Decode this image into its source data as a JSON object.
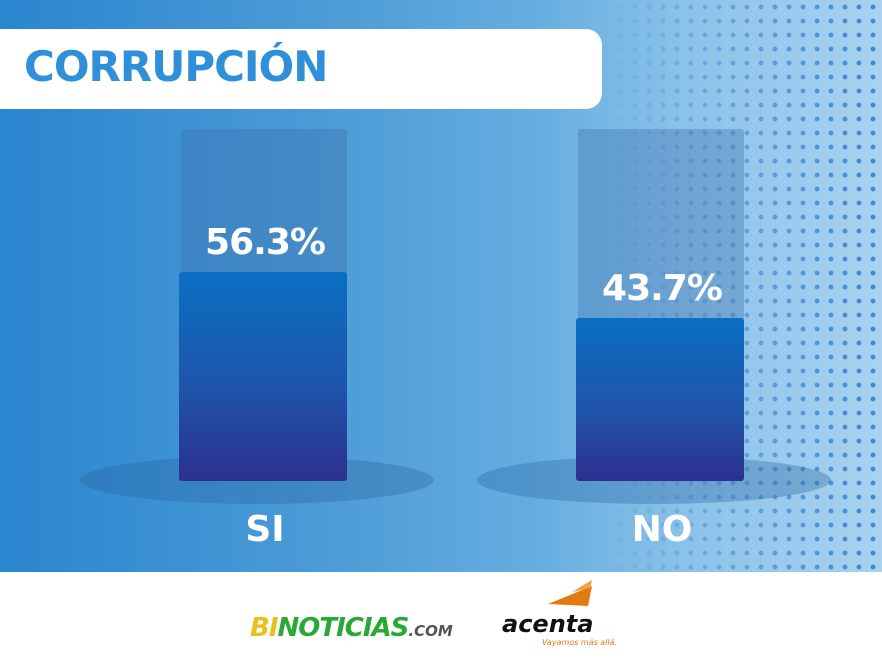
{
  "title": "CORRUPCIÓN",
  "chart_data": {
    "type": "bar",
    "title": "CORRUPCIÓN",
    "categories": [
      "SI",
      "NO"
    ],
    "values": [
      56.3,
      43.7
    ],
    "value_labels": [
      "56.3%",
      "43.7%"
    ],
    "ylim": [
      0,
      100
    ],
    "bar_color": "#1e55ab",
    "grid": false
  },
  "footer": {
    "logo1": {
      "bi": "BI",
      "noticias": "NOTICIAS",
      "com": ".COM"
    },
    "logo2": {
      "word": "acenta",
      "tagline": "Vayamos más allá."
    }
  },
  "colors": {
    "title": "#2f8fd8",
    "accent_orange": "#e07a12",
    "logo_yellow": "#e8c21c",
    "logo_green": "#2aa836"
  }
}
